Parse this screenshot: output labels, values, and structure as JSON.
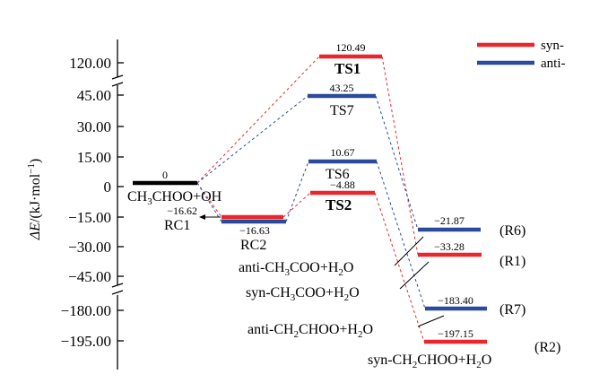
{
  "chart_data": {
    "type": "energy_diagram",
    "y_axis": {
      "label_prefix": "ΔE",
      "label_unit": "/(kJ·mol",
      "label_exp": "−1",
      "label_close": ")",
      "ticks": [
        "120.00",
        "45.00",
        "30.00",
        "15.00",
        "0",
        "−15.00",
        "−30.00",
        "−45.00",
        "−180.00",
        "−195.00"
      ]
    },
    "legend": [
      {
        "name": "syn-",
        "color": "#e8262b"
      },
      {
        "name": "anti-",
        "color": "#2a4b9b"
      }
    ],
    "colors": {
      "syn": "#e8262b",
      "anti": "#2a4b9b",
      "reactant": "#000000"
    },
    "levels": {
      "reactant": {
        "value": "0",
        "label_main": "CH",
        "label_sub": "3",
        "label_rest": "CHOO+OH"
      },
      "RC1": {
        "value": "−16.62",
        "label": "RC1"
      },
      "RC2": {
        "value": "−16.63",
        "label": "RC2"
      },
      "TS1": {
        "value": "120.49",
        "label": "TS1"
      },
      "TS7": {
        "value": "43.25",
        "label": "TS7"
      },
      "TS6": {
        "value": "10.67",
        "label": "TS6"
      },
      "TS2": {
        "value": "−4.88",
        "label": "TS2"
      },
      "R6": {
        "value": "−21.87",
        "label": "(R6)"
      },
      "R1": {
        "value": "−33.28",
        "label": "(R1)"
      },
      "R7": {
        "value": "−183.40",
        "label": "(R7)"
      },
      "R2": {
        "value": "−197.15",
        "label": "(R2)"
      }
    },
    "products": {
      "anti_ch3coo": {
        "p1": "anti-CH",
        "s1": "3",
        "p2": "COO+H",
        "s2": "2",
        "p3": "O"
      },
      "syn_ch3coo": {
        "p1": "syn-CH",
        "s1": "3",
        "p2": "COO+H",
        "s2": "2",
        "p3": "O"
      },
      "anti_ch2choo": {
        "p1": "anti-CH",
        "s1": "2",
        "p2": "CHOO+H",
        "s2": "2",
        "p3": "O"
      },
      "syn_ch2choo": {
        "p1": "syn-CH",
        "s1": "2",
        "p2": "CHOO+H",
        "s2": "2",
        "p3": "O"
      }
    }
  }
}
